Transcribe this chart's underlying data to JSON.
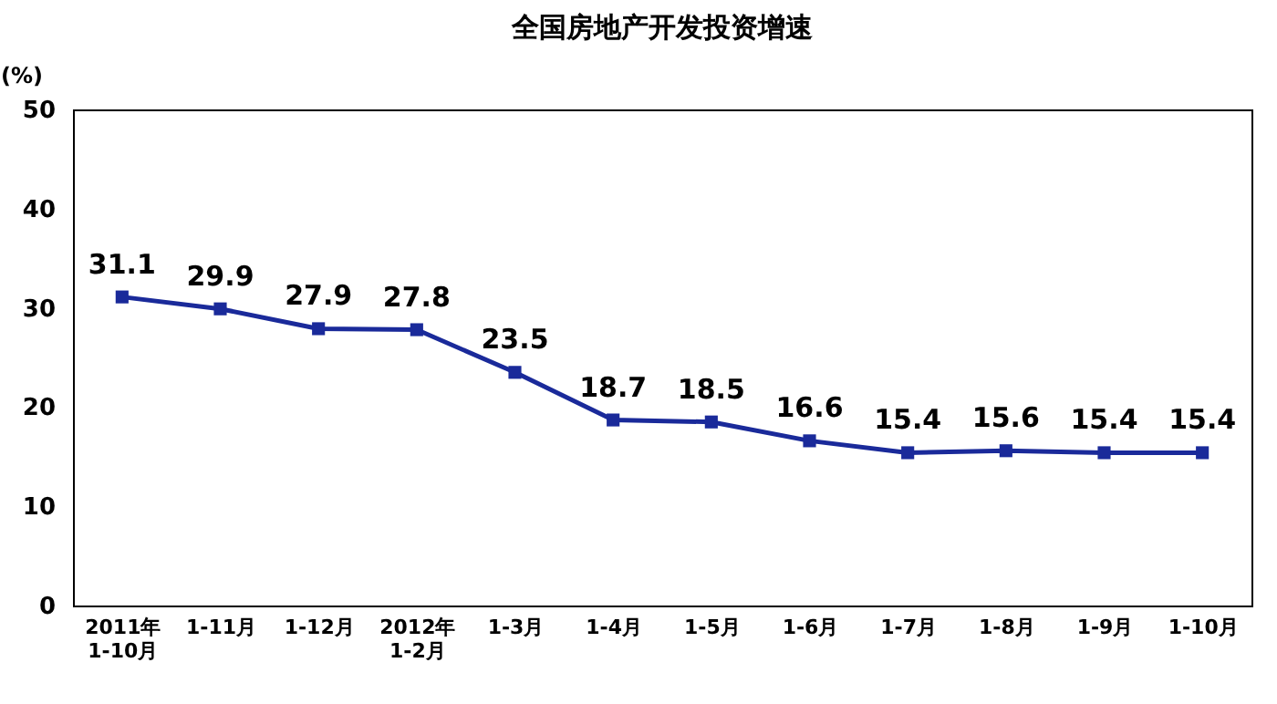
{
  "chart_data": {
    "type": "line",
    "title": "全国房地产开发投资增速",
    "ylabel": "(%)",
    "categories": [
      "2011年 1-10月",
      "1-11月",
      "1-12月",
      "2012年 1-2月",
      "1-3月",
      "1-4月",
      "1-5月",
      "1-6月",
      "1-7月",
      "1-8月",
      "1-9月",
      "1-10月"
    ],
    "series": [
      {
        "color": "#1a2a9a",
        "values": [
          31.1,
          29.9,
          27.9,
          27.8,
          23.5,
          18.7,
          18.5,
          16.6,
          15.4,
          15.6,
          15.4,
          15.4
        ]
      }
    ],
    "ylim": [
      0,
      50
    ],
    "yticks": [
      0,
      10,
      20,
      30,
      40,
      50
    ],
    "grid": false,
    "marker": "square",
    "line_style": "solid",
    "data_labels": true
  }
}
